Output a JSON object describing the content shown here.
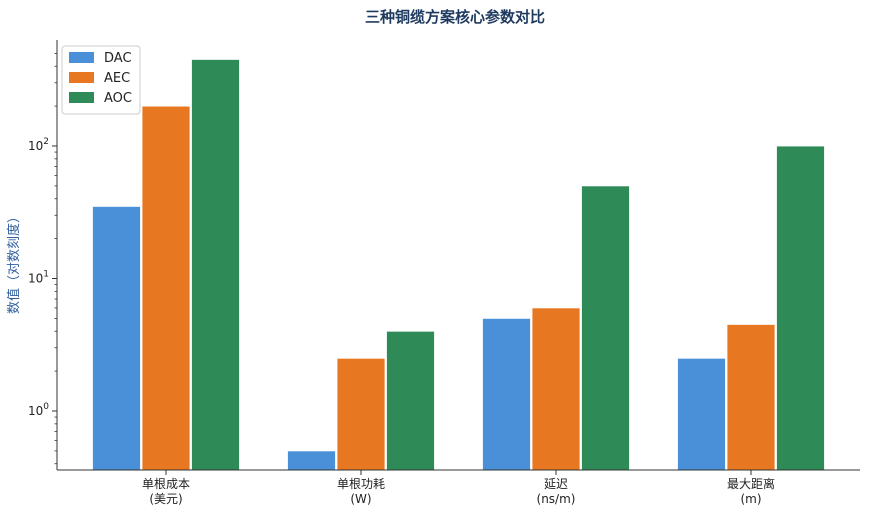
{
  "chart_data": {
    "type": "bar",
    "title": "三种铜缆方案核心参数对比",
    "ylabel": "数值（对数刻度）",
    "yscale": "log",
    "ylim": [
      0.35,
      600
    ],
    "yticks": [
      {
        "value": 1,
        "base": "10",
        "exp": "0"
      },
      {
        "value": 10,
        "base": "10",
        "exp": "1"
      },
      {
        "value": 100,
        "base": "10",
        "exp": "2"
      }
    ],
    "legend_position": "top-left",
    "categories": [
      {
        "line1": "单根成本",
        "line2": "(美元)"
      },
      {
        "line1": "单根功耗",
        "line2": "(W)"
      },
      {
        "line1": "延迟",
        "line2": "(ns/m)"
      },
      {
        "line1": "最大距离",
        "line2": "(m)"
      }
    ],
    "series": [
      {
        "name": "DAC",
        "color": "#4a90d9",
        "values": [
          35,
          0.5,
          5,
          2.5
        ]
      },
      {
        "name": "AEC",
        "color": "#e87722",
        "values": [
          200,
          2.5,
          6,
          4.5
        ]
      },
      {
        "name": "AOC",
        "color": "#2e8b57",
        "values": [
          450,
          4,
          50,
          100
        ]
      }
    ]
  }
}
